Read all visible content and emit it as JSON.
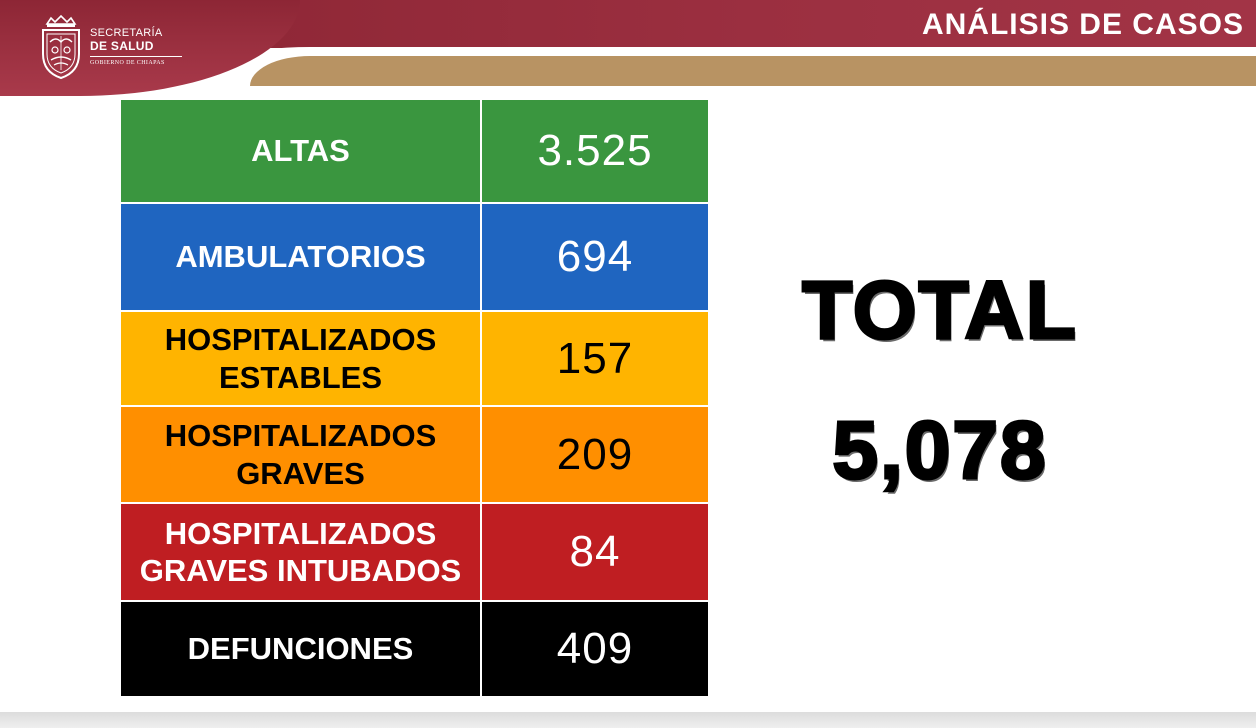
{
  "header": {
    "title": "ANÁLISIS DE CASOS",
    "logo": {
      "line1": "SECRETARÍA",
      "line2": "DE SALUD",
      "line3": "GOBIERNO DE CHIAPAS"
    },
    "colors": {
      "maroon": "#8a2432",
      "gold": "#b89363"
    }
  },
  "table": {
    "rows": [
      {
        "label": "ALTAS",
        "value": "3.525",
        "bg": "#3a963f",
        "label_color": "#ffffff",
        "value_color": "#ffffff"
      },
      {
        "label": "AMBULATORIOS",
        "value": "694",
        "bg": "#1f65c0",
        "label_color": "#ffffff",
        "value_color": "#ffffff"
      },
      {
        "label": "HOSPITALIZADOS ESTABLES",
        "value": "157",
        "bg": "#ffb400",
        "label_color": "#000000",
        "value_color": "#000000"
      },
      {
        "label": "HOSPITALIZADOS GRAVES",
        "value": "209",
        "bg": "#ff8f00",
        "label_color": "#000000",
        "value_color": "#000000"
      },
      {
        "label": "HOSPITALIZADOS GRAVES INTUBADOS",
        "value": "84",
        "bg": "#bf1e22",
        "label_color": "#ffffff",
        "value_color": "#ffffff"
      },
      {
        "label": "DEFUNCIONES",
        "value": "409",
        "bg": "#000000",
        "label_color": "#ffffff",
        "value_color": "#ffffff"
      }
    ]
  },
  "total": {
    "label": "TOTAL",
    "value": "5,078"
  }
}
